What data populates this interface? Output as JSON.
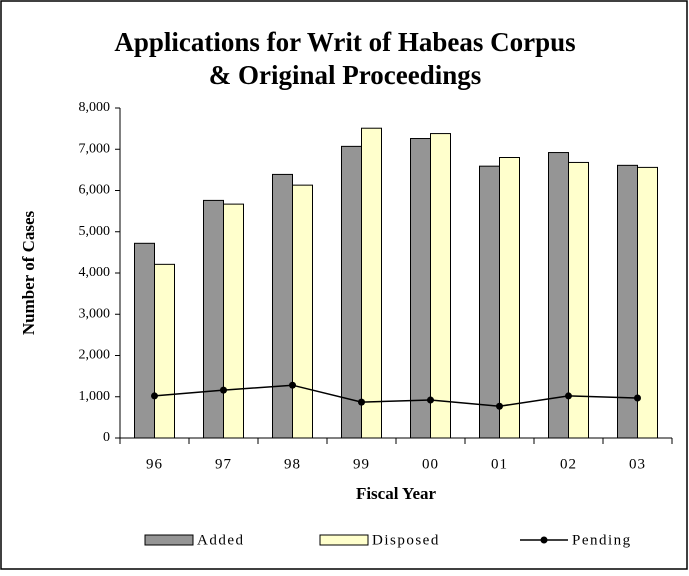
{
  "chart_data": {
    "type": "bar",
    "title": [
      "Applications for Writ of Habeas Corpus",
      "& Original Proceedings"
    ],
    "y_label": "Number of Cases",
    "x_label": "Fiscal Year",
    "categories": [
      "96",
      "97",
      "98",
      "99",
      "00",
      "01",
      "02",
      "03"
    ],
    "series": [
      {
        "name": "Added",
        "type": "bar",
        "color": "#959595",
        "values": [
          4720,
          5760,
          6390,
          7070,
          7260,
          6590,
          6920,
          6610
        ]
      },
      {
        "name": "Disposed",
        "type": "bar",
        "color": "#ffffcc",
        "values": [
          4210,
          5670,
          6130,
          7510,
          7380,
          6800,
          6680,
          6560
        ]
      },
      {
        "name": "Pending",
        "type": "line",
        "color": "#000000",
        "values": [
          1020,
          1160,
          1280,
          870,
          920,
          770,
          1020,
          970
        ]
      }
    ],
    "ylim": [
      0,
      8000
    ],
    "yticks": [
      0,
      {
        "value": 1000,
        "label": "1,000"
      },
      {
        "value": 2000,
        "label": "2,000"
      },
      {
        "value": 3000,
        "label": "3,000"
      },
      {
        "value": 4000,
        "label": "4,000"
      },
      {
        "value": 5000,
        "label": "5,000"
      },
      {
        "value": 6000,
        "label": "6,000"
      },
      {
        "value": 7000,
        "label": "7,000"
      },
      {
        "value": 8000,
        "label": "8,000"
      }
    ],
    "grid": false,
    "legend": "bottom"
  }
}
